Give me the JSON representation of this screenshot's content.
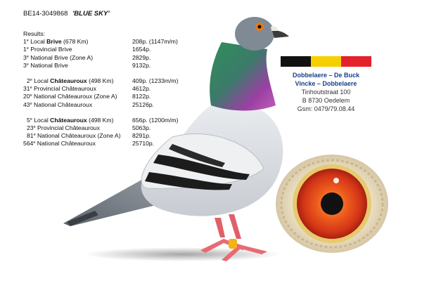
{
  "ring": {
    "number": "BE14-3049868",
    "name": "'BLUE SKY'"
  },
  "results": {
    "header": "Results:",
    "groups": [
      {
        "lines": [
          {
            "ordinal": "1",
            "text_before": " Local ",
            "race": "Brive",
            "text_after": " (678 Km)",
            "points": "208p. (1147m/m)"
          },
          {
            "ordinal": "1",
            "text": " Provincial Brive",
            "points": "1654p."
          },
          {
            "ordinal": "3",
            "text": " National Brive (Zone A)",
            "points": "2829p."
          },
          {
            "ordinal": "3",
            "text": " National Brive",
            "points": "9132p."
          }
        ]
      },
      {
        "lines": [
          {
            "ordinal": "2",
            "text_before": " Local ",
            "race": "Châteauroux",
            "text_after": " (498 Km)",
            "points": "409p. (1233m/m)"
          },
          {
            "ordinal": "31",
            "text": " Provincial Châteauroux",
            "points": "4612p."
          },
          {
            "ordinal": "20",
            "text": " National Châteauroux (Zone A)",
            "points": "8122p."
          },
          {
            "ordinal": "43",
            "text": " National Châteauroux",
            "points": "25126p."
          }
        ]
      },
      {
        "lines": [
          {
            "ordinal": "5",
            "text_before": " Local ",
            "race": "Châteauroux",
            "text_after": " (498 Km)",
            "points": "656p. (1200m/m)"
          },
          {
            "ordinal": "23",
            "text": " Provincial Châteauroux",
            "points": "5063p."
          },
          {
            "ordinal": "81",
            "text": " National Châteauroux (Zone A)",
            "points": "8291p."
          },
          {
            "ordinal": "564",
            "text": " National Châteauroux",
            "points": "25710p."
          }
        ]
      }
    ],
    "ordinal_sup": "e"
  },
  "flag": {
    "colors": [
      "#111111",
      "#f5d000",
      "#e3222b"
    ]
  },
  "owner": {
    "name1": "Dobbelaere – De Buck",
    "name2": "Vincke – Dobbelaere",
    "street": "Tinhoutstraat 100",
    "city": "B 8730 Oedelem",
    "gsm": "Gsm: 0479/79.08.44"
  },
  "images": {
    "pigeon": "pigeon-icon",
    "eye": "pigeon-eye-icon"
  }
}
